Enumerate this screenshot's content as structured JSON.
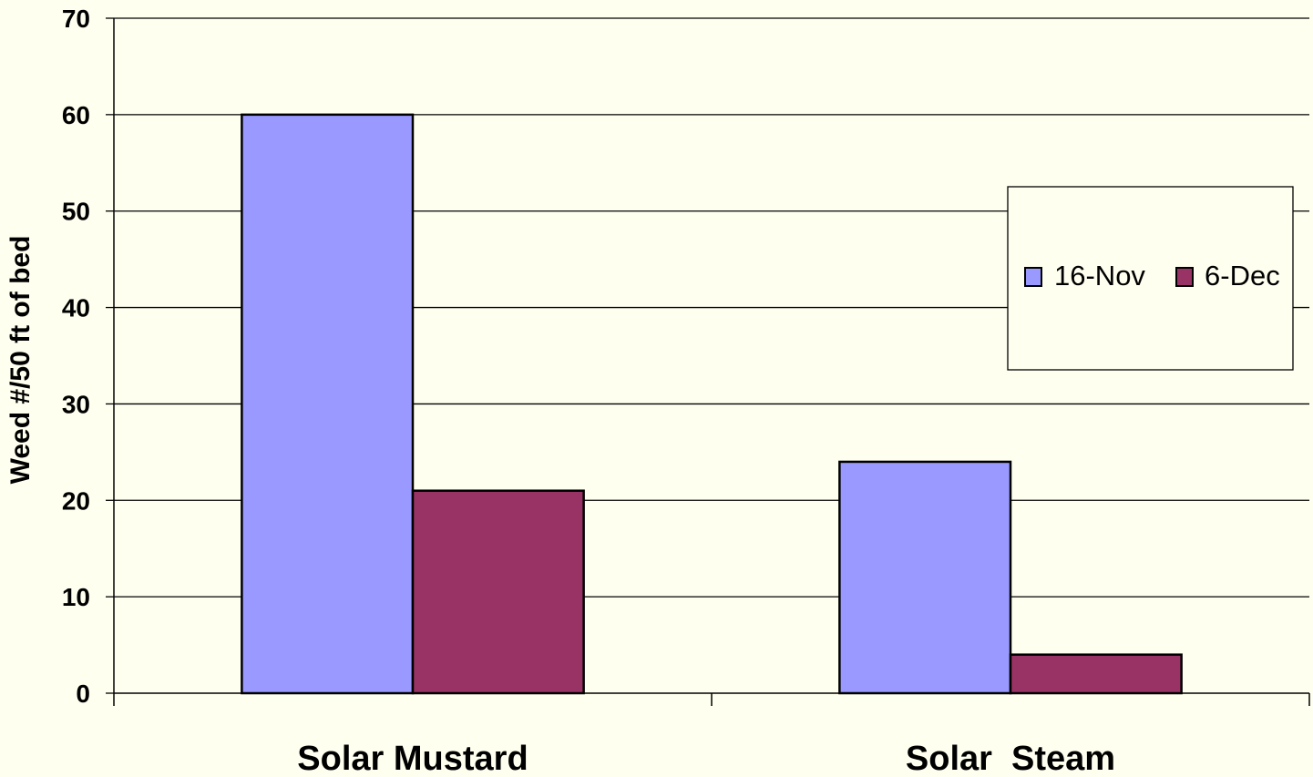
{
  "chart_data": {
    "type": "bar",
    "categories": [
      "Solar Mustard",
      "Solar  Steam"
    ],
    "series": [
      {
        "name": "16-Nov",
        "values": [
          60,
          24
        ],
        "color": "#9999ff"
      },
      {
        "name": "6-Dec",
        "values": [
          21,
          4
        ],
        "color": "#993366"
      }
    ],
    "title": "",
    "xlabel": "",
    "ylabel": "Weed #/50 ft of bed",
    "ylim": [
      0,
      70
    ],
    "yticks": [
      0,
      10,
      20,
      30,
      40,
      50,
      60,
      70
    ],
    "grid": true,
    "legend_position": "right"
  }
}
